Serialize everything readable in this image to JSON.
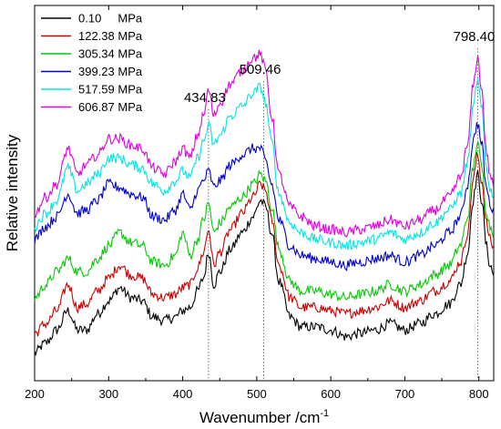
{
  "chart_data": {
    "type": "line",
    "xlabel": "Wavenumber /cm",
    "xlabel_sup": "-1",
    "ylabel": "Relative intensity",
    "xlim": [
      200,
      820
    ],
    "ylim": [
      0,
      100
    ],
    "x_ticks": [
      200,
      300,
      400,
      500,
      600,
      700,
      800
    ],
    "x_tick_labels": [
      "200",
      "300",
      "400",
      "500",
      "600",
      "700",
      "800"
    ],
    "y_ticks_shown": false,
    "grid": false,
    "legend_position": "top-left",
    "annotations": [
      {
        "text": "434.83",
        "x": 434.83
      },
      {
        "text": "509.46",
        "x": 509.46
      },
      {
        "text": "798.40",
        "x": 798.4
      }
    ],
    "series": [
      {
        "name": "0.10     MPa",
        "color": "#000000",
        "x": [
          200,
          215,
          230,
          245,
          258,
          270,
          285,
          300,
          315,
          330,
          345,
          360,
          375,
          390,
          400,
          410,
          420,
          428,
          435,
          442,
          450,
          465,
          480,
          495,
          505,
          512,
          520,
          530,
          545,
          560,
          580,
          600,
          620,
          640,
          660,
          680,
          700,
          720,
          740,
          760,
          775,
          785,
          792,
          798,
          804,
          810,
          815,
          820
        ],
        "y": [
          3,
          6,
          10,
          16,
          10,
          10,
          15,
          19,
          23,
          20,
          19,
          14,
          13,
          14,
          16,
          17,
          22,
          26,
          34,
          24,
          28,
          35,
          40,
          45,
          50,
          48,
          40,
          25,
          14,
          11,
          11,
          10,
          8,
          9,
          10,
          12,
          10,
          12,
          15,
          18,
          24,
          34,
          50,
          58,
          50,
          36,
          30,
          27
        ]
      },
      {
        "name": "122.38 MPa",
        "color": "#cc0000",
        "x": [
          200,
          215,
          230,
          245,
          258,
          270,
          285,
          300,
          315,
          330,
          345,
          360,
          375,
          390,
          400,
          410,
          420,
          428,
          435,
          442,
          450,
          465,
          480,
          495,
          505,
          512,
          520,
          530,
          545,
          560,
          580,
          600,
          620,
          640,
          660,
          680,
          700,
          720,
          740,
          760,
          775,
          785,
          792,
          798,
          804,
          810,
          815,
          820
        ],
        "y": [
          9,
          12,
          16,
          24,
          17,
          18,
          22,
          26,
          30,
          27,
          26,
          21,
          20,
          21,
          23,
          24,
          29,
          34,
          41,
          30,
          34,
          41,
          46,
          51,
          55,
          53,
          44,
          30,
          20,
          17,
          17,
          16,
          15,
          16,
          17,
          19,
          17,
          19,
          22,
          25,
          31,
          40,
          56,
          64,
          56,
          43,
          38,
          35
        ]
      },
      {
        "name": "305.34 MPa",
        "color": "#00cc00",
        "x": [
          200,
          215,
          230,
          245,
          258,
          270,
          285,
          300,
          315,
          330,
          345,
          360,
          375,
          390,
          400,
          410,
          420,
          428,
          435,
          442,
          450,
          465,
          480,
          495,
          505,
          512,
          520,
          530,
          545,
          560,
          580,
          600,
          620,
          640,
          660,
          680,
          700,
          720,
          740,
          760,
          775,
          785,
          792,
          798,
          804,
          810,
          815,
          820
        ],
        "y": [
          20,
          24,
          28,
          32,
          28,
          28,
          32,
          36,
          40,
          37,
          36,
          31,
          30,
          33,
          40,
          33,
          38,
          44,
          49,
          40,
          43,
          48,
          51,
          55,
          58,
          56,
          48,
          35,
          25,
          22,
          22,
          21,
          20,
          21,
          22,
          24,
          22,
          24,
          27,
          30,
          36,
          45,
          60,
          68,
          60,
          47,
          42,
          40
        ]
      },
      {
        "name": "399.23 MPa",
        "color": "#0000cc",
        "x": [
          200,
          215,
          230,
          245,
          258,
          270,
          285,
          300,
          315,
          330,
          345,
          360,
          375,
          390,
          400,
          410,
          420,
          428,
          435,
          442,
          450,
          465,
          480,
          495,
          505,
          512,
          520,
          530,
          545,
          560,
          580,
          600,
          620,
          640,
          660,
          680,
          700,
          720,
          740,
          760,
          775,
          785,
          792,
          798,
          804,
          810,
          815,
          820
        ],
        "y": [
          38,
          42,
          45,
          52,
          46,
          47,
          50,
          55,
          54,
          52,
          51,
          45,
          44,
          47,
          52,
          47,
          53,
          56,
          59,
          54,
          56,
          61,
          64,
          66,
          66,
          62,
          55,
          44,
          36,
          33,
          32,
          31,
          30,
          31,
          32,
          33,
          31,
          33,
          36,
          40,
          45,
          55,
          68,
          74,
          67,
          54,
          49,
          46
        ]
      },
      {
        "name": "517.59 MPa",
        "color": "#00e5e5",
        "x": [
          200,
          215,
          230,
          245,
          258,
          270,
          285,
          300,
          315,
          330,
          345,
          360,
          375,
          390,
          400,
          410,
          420,
          428,
          435,
          442,
          450,
          465,
          480,
          495,
          505,
          512,
          520,
          530,
          545,
          560,
          580,
          600,
          620,
          640,
          660,
          680,
          700,
          720,
          740,
          760,
          775,
          785,
          792,
          798,
          804,
          810,
          815,
          820
        ],
        "y": [
          42,
          46,
          50,
          60,
          53,
          55,
          58,
          63,
          63,
          61,
          60,
          55,
          53,
          56,
          59,
          57,
          63,
          68,
          73,
          67,
          70,
          76,
          79,
          83,
          85,
          80,
          68,
          52,
          43,
          40,
          38,
          37,
          36,
          37,
          38,
          40,
          38,
          40,
          43,
          47,
          52,
          62,
          78,
          87,
          78,
          60,
          54,
          50
        ]
      },
      {
        "name": "606.87 MPa",
        "color": "#e000e0",
        "x": [
          200,
          215,
          230,
          245,
          258,
          270,
          285,
          300,
          315,
          330,
          345,
          360,
          375,
          390,
          400,
          410,
          420,
          428,
          435,
          442,
          450,
          465,
          480,
          495,
          505,
          512,
          520,
          530,
          545,
          560,
          580,
          600,
          620,
          640,
          660,
          680,
          700,
          720,
          740,
          760,
          775,
          785,
          792,
          798,
          804,
          810,
          815,
          820
        ],
        "y": [
          46,
          51,
          55,
          66,
          58,
          61,
          64,
          69,
          69,
          67,
          66,
          60,
          58,
          62,
          66,
          63,
          70,
          76,
          84,
          76,
          80,
          86,
          90,
          94,
          95,
          90,
          76,
          58,
          48,
          45,
          42,
          41,
          40,
          41,
          42,
          44,
          42,
          44,
          47,
          51,
          57,
          67,
          85,
          94,
          84,
          65,
          58,
          54
        ]
      }
    ]
  }
}
